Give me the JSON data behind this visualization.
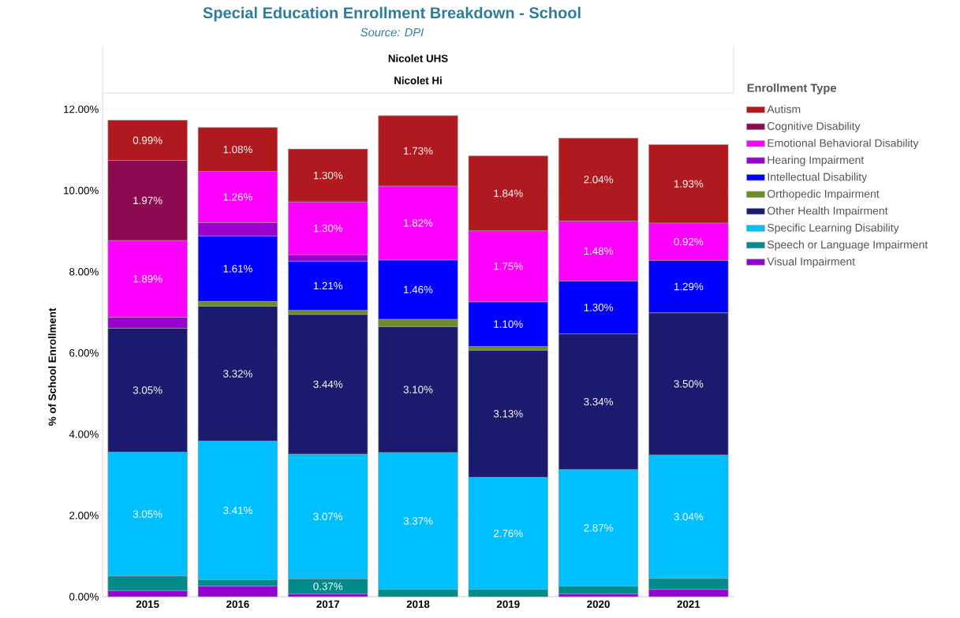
{
  "chart_data": {
    "type": "bar",
    "stacked": true,
    "title": "Special Education Enrollment Breakdown - School",
    "subtitle": "Source: DPI",
    "ylabel": "% of School Enrollment",
    "legend_title": "Enrollment Type",
    "legend": "right",
    "grid": "y",
    "annotations": [
      "Nicolet UHS",
      "Nicolet Hi"
    ],
    "categories": [
      "2015",
      "2016",
      "2017",
      "2018",
      "2019",
      "2020",
      "2021"
    ],
    "ylim": [
      0,
      12.4
    ],
    "yticks": [
      {
        "value": 0,
        "label": "0.00%"
      },
      {
        "value": 2,
        "label": "2.00%"
      },
      {
        "value": 4,
        "label": "4.00%"
      },
      {
        "value": 6,
        "label": "6.00%"
      },
      {
        "value": 8,
        "label": "8.00%"
      },
      {
        "value": 10,
        "label": "10.00%"
      },
      {
        "value": 12,
        "label": "12.00%"
      }
    ],
    "series": [
      {
        "name": "Visual Impairment",
        "color": "#9400d3",
        "values": [
          0.15,
          0.26,
          0.07,
          null,
          null,
          0.07,
          0.18
        ],
        "value_labels": [
          null,
          null,
          null,
          null,
          null,
          null,
          null
        ]
      },
      {
        "name": "Speech or Language Impairment",
        "color": "#008b8b",
        "values": [
          0.36,
          0.16,
          0.37,
          0.18,
          0.18,
          0.19,
          0.27
        ],
        "value_labels": [
          null,
          null,
          "0.37%",
          null,
          null,
          null,
          null
        ]
      },
      {
        "name": "Specific Learning Disability",
        "color": "#00bfff",
        "values": [
          3.05,
          3.41,
          3.07,
          3.37,
          2.76,
          2.87,
          3.04
        ],
        "value_labels": [
          "3.05%",
          "3.41%",
          "3.07%",
          "3.37%",
          "2.76%",
          "2.87%",
          "3.04%"
        ]
      },
      {
        "name": "Other Health Impairment",
        "color": "#1a1a6e",
        "values": [
          3.05,
          3.32,
          3.44,
          3.1,
          3.13,
          3.34,
          3.5
        ],
        "value_labels": [
          "3.05%",
          "3.32%",
          "3.44%",
          "3.10%",
          "3.13%",
          "3.34%",
          "3.50%"
        ]
      },
      {
        "name": "Orthopedic Impairment",
        "color": "#6b8e23",
        "values": [
          null,
          0.12,
          0.1,
          0.18,
          0.09,
          null,
          null
        ],
        "value_labels": [
          null,
          null,
          null,
          null,
          null,
          null,
          null
        ]
      },
      {
        "name": "Intellectual Disability",
        "color": "#0000ff",
        "values": [
          null,
          1.61,
          1.21,
          1.46,
          1.1,
          1.3,
          1.29
        ],
        "value_labels": [
          null,
          "1.61%",
          "1.21%",
          "1.46%",
          "1.10%",
          "1.30%",
          "1.29%"
        ]
      },
      {
        "name": "Hearing Impairment",
        "color": "#9900cc",
        "values": [
          0.27,
          0.33,
          0.16,
          null,
          null,
          null,
          null
        ],
        "value_labels": [
          null,
          null,
          null,
          null,
          null,
          null,
          null
        ]
      },
      {
        "name": "Emotional Behavioral Disability",
        "color": "#ff00ff",
        "values": [
          1.89,
          1.26,
          1.3,
          1.82,
          1.75,
          1.48,
          0.92
        ],
        "value_labels": [
          "1.89%",
          "1.26%",
          "1.30%",
          "1.82%",
          "1.75%",
          "1.48%",
          "0.92%"
        ]
      },
      {
        "name": "Cognitive Disability",
        "color": "#8b0a50",
        "values": [
          1.97,
          null,
          null,
          null,
          null,
          null,
          null
        ],
        "value_labels": [
          "1.97%",
          null,
          null,
          null,
          null,
          null,
          null
        ]
      },
      {
        "name": "Autism",
        "color": "#b0191e",
        "values": [
          0.99,
          1.08,
          1.3,
          1.73,
          1.84,
          2.04,
          1.93
        ],
        "value_labels": [
          "0.99%",
          "1.08%",
          "1.30%",
          "1.73%",
          "1.84%",
          "2.04%",
          "1.93%"
        ]
      }
    ]
  }
}
